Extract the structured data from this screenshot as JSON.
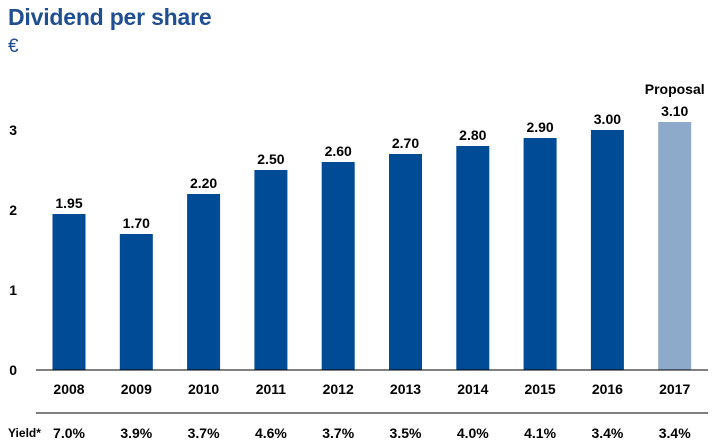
{
  "chart_data": {
    "type": "bar",
    "title": "Dividend per share",
    "unit": "€",
    "categories": [
      "2008",
      "2009",
      "2010",
      "2011",
      "2012",
      "2013",
      "2014",
      "2015",
      "2016",
      "2017"
    ],
    "values": [
      1.95,
      1.7,
      2.2,
      2.5,
      2.6,
      2.7,
      2.8,
      2.9,
      3.0,
      3.1
    ],
    "value_labels": [
      "1.95",
      "1.70",
      "2.20",
      "2.50",
      "2.60",
      "2.70",
      "2.80",
      "2.90",
      "3.00",
      "3.10"
    ],
    "highlight_index": 9,
    "highlight_annotation": "Proposal",
    "ylim": [
      0,
      3.5
    ],
    "yticks": [
      "0",
      "1",
      "2",
      "3"
    ],
    "grid": false,
    "colors": {
      "bar": "#004b96",
      "highlight": "#8eaacb",
      "title": "#1f4e91"
    },
    "yield_row": {
      "label": "Yield*",
      "values": [
        "7.0%",
        "3.9%",
        "3.7%",
        "4.6%",
        "3.7%",
        "3.5%",
        "4.0%",
        "4.1%",
        "3.4%",
        "3.4%"
      ]
    }
  }
}
